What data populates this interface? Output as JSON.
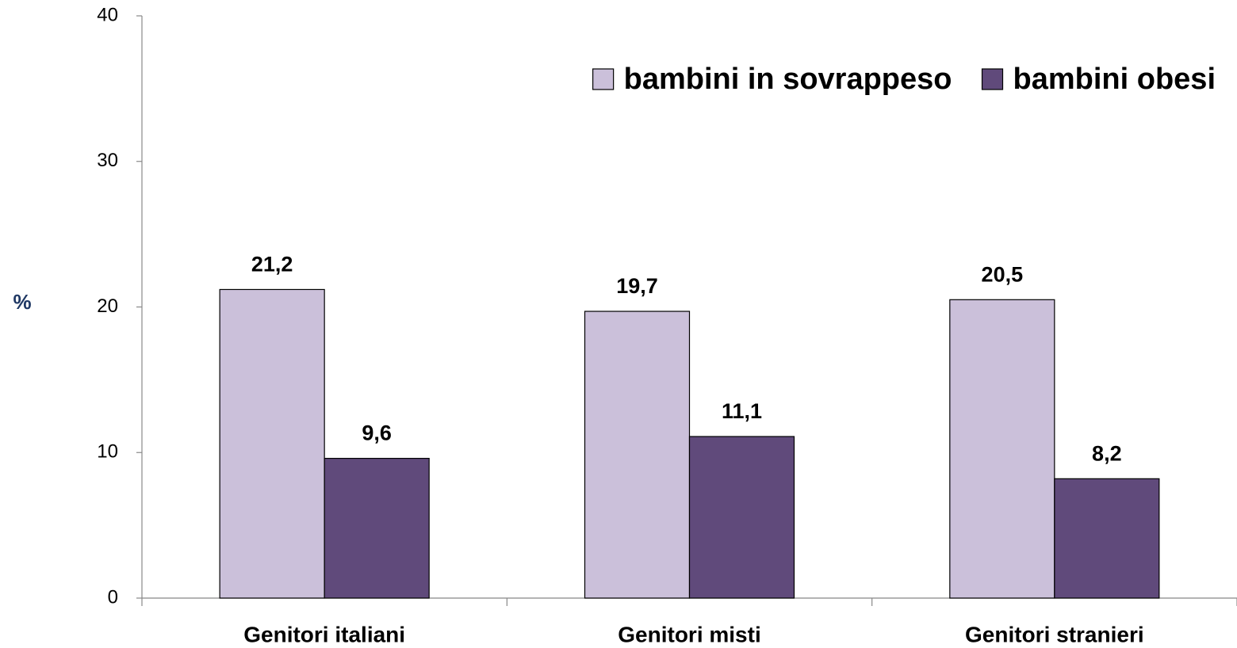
{
  "chart_data": {
    "type": "bar",
    "y_label": "%",
    "categories": [
      "Genitori italiani",
      "Genitori misti",
      "Genitori stranieri"
    ],
    "series": [
      {
        "name": "bambini in sovrappeso",
        "color": "#cbc0da",
        "values": [
          21.2,
          19.7,
          20.5
        ],
        "value_labels": [
          "21,2",
          "19,7",
          "20,5"
        ]
      },
      {
        "name": "bambini obesi",
        "color": "#604a7b",
        "values": [
          9.6,
          11.1,
          8.2
        ],
        "value_labels": [
          "9,6",
          "11,1",
          "8,2"
        ]
      }
    ],
    "ylim": [
      0,
      40
    ],
    "yticks": [
      0,
      10,
      20,
      30,
      40
    ],
    "grid": false,
    "legend": "top-right"
  }
}
